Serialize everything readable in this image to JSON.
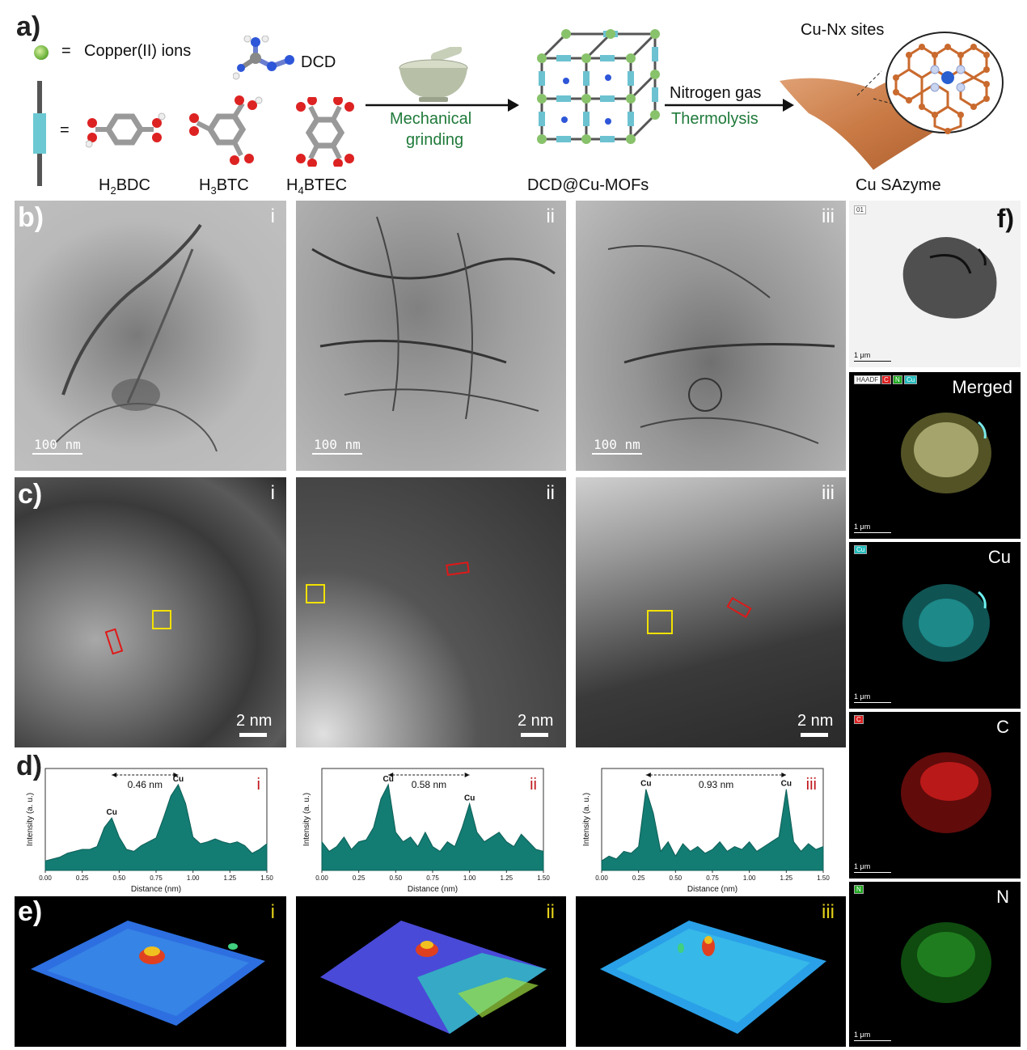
{
  "panel_labels": {
    "a": "a)",
    "b": "b)",
    "c": "c)",
    "d": "d)",
    "e": "e)",
    "f": "f)"
  },
  "scheme": {
    "legend_ion": "Copper(II) ions",
    "legend_eq1": "=",
    "legend_eq2": "=",
    "dcd": "DCD",
    "linkers": {
      "l1_main": "H",
      "l1_sub": "2",
      "l1_rest": "BDC",
      "l2_main": "H",
      "l2_sub": "3",
      "l2_rest": "BTC",
      "l3_main": "H",
      "l3_sub": "4",
      "l3_rest": "BTEC"
    },
    "step1_line1": "Mechanical",
    "step1_line2": "grinding",
    "mof_label": "DCD@Cu-MOFs",
    "step2_line1": "Nitrogen gas",
    "step2_line2": "Thermolysis",
    "sites_label": "Cu-Nx sites",
    "product_label": "Cu SAzyme",
    "colors": {
      "green_text": "#1f7a3a",
      "arrow": "#111111",
      "carbon": "#c96a2e",
      "nitrogen": "#c9d4f0",
      "copper": "#2a5fd0",
      "sheet": "#c97a45",
      "mof_node": "#88c26b",
      "mof_strut": "#6cc2d0"
    }
  },
  "tem": {
    "roman": [
      "i",
      "ii",
      "iii"
    ],
    "scale_text": "100 nm"
  },
  "haadf": {
    "roman": [
      "i",
      "ii",
      "iii"
    ],
    "scale_text": "2 nm"
  },
  "profiles": {
    "roman": [
      "i",
      "ii",
      "iii"
    ],
    "ylabel": "Intensity (a. u.)",
    "xlabel": "Distance (nm)",
    "peak_label": "Cu",
    "distances": [
      "0.46 nm",
      "0.58 nm",
      "0.93 nm"
    ]
  },
  "surface": {
    "roman": [
      "i",
      "ii",
      "iii"
    ]
  },
  "eds": {
    "f_small_scale": "1 μm",
    "merged": "Merged",
    "cu": "Cu",
    "c": "C",
    "n": "N",
    "tag_haadf": "HAADF",
    "tag_c": "C",
    "tag_n": "N",
    "tag_cu": "Cu",
    "tag_top": "01"
  },
  "chart_data": [
    {
      "type": "line",
      "title": "",
      "xlabel": "Distance (nm)",
      "ylabel": "Intensity (a. u.)",
      "xlim": [
        0,
        1.5
      ],
      "xticks": [
        "0.00",
        "0.25",
        "0.50",
        "0.75",
        "1.00",
        "1.25",
        "1.50"
      ],
      "annotation": "0.46 nm",
      "panel": "i",
      "x": [
        0,
        0.05,
        0.1,
        0.15,
        0.2,
        0.25,
        0.3,
        0.35,
        0.4,
        0.45,
        0.5,
        0.55,
        0.6,
        0.65,
        0.7,
        0.75,
        0.8,
        0.85,
        0.9,
        0.95,
        1.0,
        1.05,
        1.1,
        1.15,
        1.2,
        1.25,
        1.3,
        1.35,
        1.4,
        1.45,
        1.5
      ],
      "y": [
        0.1,
        0.12,
        0.14,
        0.18,
        0.2,
        0.22,
        0.22,
        0.25,
        0.45,
        0.55,
        0.35,
        0.22,
        0.2,
        0.26,
        0.3,
        0.34,
        0.55,
        0.78,
        0.9,
        0.7,
        0.35,
        0.28,
        0.3,
        0.33,
        0.3,
        0.28,
        0.3,
        0.26,
        0.18,
        0.22,
        0.28
      ]
    },
    {
      "type": "line",
      "title": "",
      "xlabel": "Distance (nm)",
      "ylabel": "Intensity (a. u.)",
      "xlim": [
        0,
        1.5
      ],
      "xticks": [
        "0.00",
        "0.25",
        "0.50",
        "0.75",
        "1.00",
        "1.25",
        "1.50"
      ],
      "annotation": "0.58 nm",
      "panel": "ii",
      "x": [
        0,
        0.05,
        0.1,
        0.15,
        0.2,
        0.25,
        0.3,
        0.35,
        0.4,
        0.45,
        0.5,
        0.55,
        0.6,
        0.65,
        0.7,
        0.75,
        0.8,
        0.85,
        0.9,
        0.95,
        1.0,
        1.05,
        1.1,
        1.15,
        1.2,
        1.25,
        1.3,
        1.35,
        1.4,
        1.45,
        1.5
      ],
      "y": [
        0.3,
        0.2,
        0.25,
        0.35,
        0.22,
        0.3,
        0.32,
        0.45,
        0.75,
        0.9,
        0.4,
        0.3,
        0.35,
        0.25,
        0.4,
        0.25,
        0.2,
        0.3,
        0.25,
        0.45,
        0.7,
        0.4,
        0.3,
        0.35,
        0.4,
        0.3,
        0.25,
        0.38,
        0.3,
        0.22,
        0.2
      ]
    },
    {
      "type": "line",
      "title": "",
      "xlabel": "Distance (nm)",
      "ylabel": "Intensity (a. u.)",
      "xlim": [
        0,
        1.5
      ],
      "xticks": [
        "0.00",
        "0.25",
        "0.50",
        "0.75",
        "1.00",
        "1.25",
        "1.50"
      ],
      "annotation": "0.93 nm",
      "panel": "iii",
      "x": [
        0,
        0.05,
        0.1,
        0.15,
        0.2,
        0.25,
        0.3,
        0.35,
        0.4,
        0.45,
        0.5,
        0.55,
        0.6,
        0.65,
        0.7,
        0.75,
        0.8,
        0.85,
        0.9,
        0.95,
        1.0,
        1.05,
        1.1,
        1.15,
        1.2,
        1.25,
        1.3,
        1.35,
        1.4,
        1.45,
        1.5
      ],
      "y": [
        0.1,
        0.15,
        0.12,
        0.2,
        0.18,
        0.25,
        0.85,
        0.6,
        0.2,
        0.3,
        0.15,
        0.28,
        0.2,
        0.25,
        0.18,
        0.22,
        0.3,
        0.2,
        0.25,
        0.22,
        0.3,
        0.2,
        0.25,
        0.3,
        0.35,
        0.85,
        0.3,
        0.2,
        0.28,
        0.22,
        0.25
      ]
    }
  ]
}
